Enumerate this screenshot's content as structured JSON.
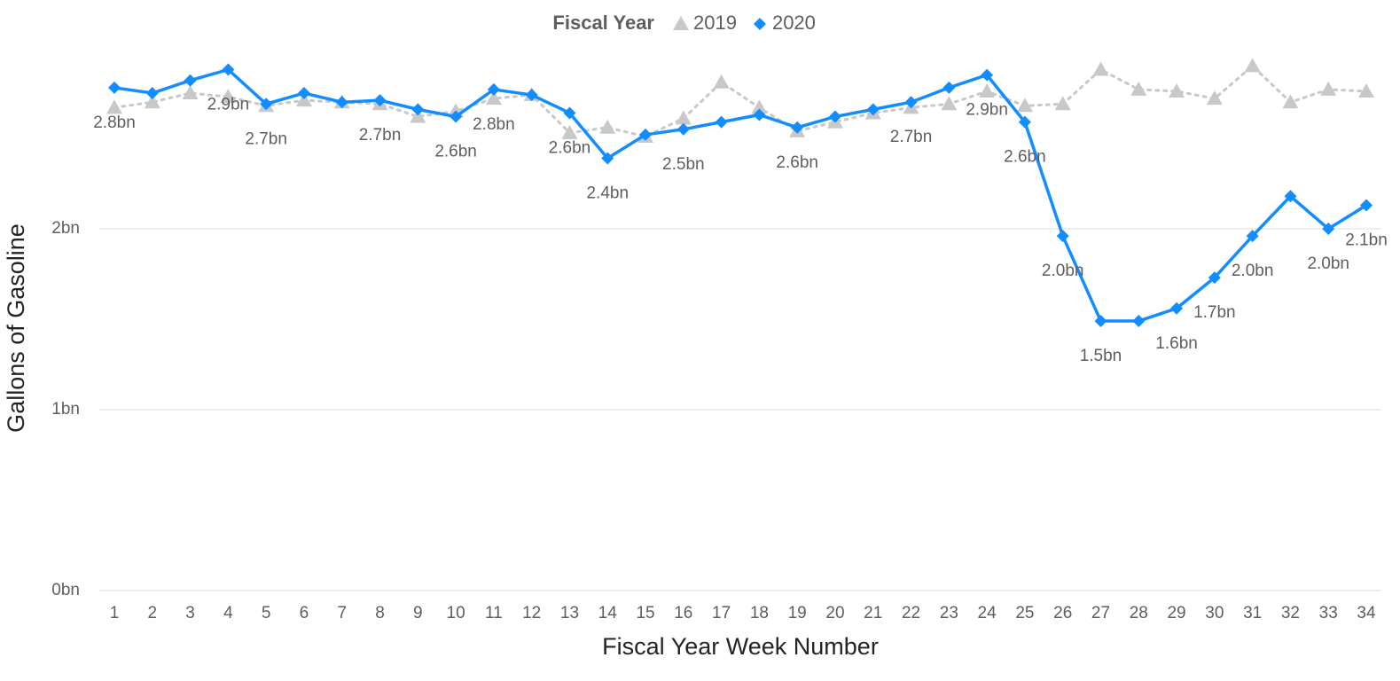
{
  "chart_data": {
    "type": "line",
    "legend_title": "Fiscal Year",
    "legend": "top",
    "x_label": "Fiscal Year Week Number",
    "y_label": "Gallons of Gasoline",
    "categories": [
      1,
      2,
      3,
      4,
      5,
      6,
      7,
      8,
      9,
      10,
      11,
      12,
      13,
      14,
      15,
      16,
      17,
      18,
      19,
      20,
      21,
      22,
      23,
      24,
      25,
      26,
      27,
      28,
      29,
      30,
      31,
      32,
      33,
      34
    ],
    "ylim": [
      0,
      3
    ],
    "yticks": [
      {
        "value": 0,
        "label": "0bn"
      },
      {
        "value": 1,
        "label": "1bn"
      },
      {
        "value": 2,
        "label": "2bn"
      }
    ],
    "grid": true,
    "series": [
      {
        "name": "2019",
        "color": "#c8c8c8",
        "marker": "triangle",
        "dashed": true,
        "values": [
          2.67,
          2.7,
          2.75,
          2.73,
          2.68,
          2.71,
          2.7,
          2.69,
          2.62,
          2.65,
          2.72,
          2.74,
          2.53,
          2.56,
          2.51,
          2.61,
          2.81,
          2.67,
          2.54,
          2.59,
          2.64,
          2.67,
          2.69,
          2.76,
          2.68,
          2.69,
          2.88,
          2.77,
          2.76,
          2.72,
          2.9,
          2.7,
          2.77,
          2.76
        ]
      },
      {
        "name": "2020",
        "color": "#118dff",
        "marker": "diamond",
        "dashed": false,
        "values": [
          2.78,
          2.75,
          2.82,
          2.88,
          2.69,
          2.75,
          2.7,
          2.71,
          2.66,
          2.62,
          2.77,
          2.74,
          2.64,
          2.39,
          2.52,
          2.55,
          2.59,
          2.63,
          2.56,
          2.62,
          2.66,
          2.7,
          2.78,
          2.85,
          2.59,
          1.96,
          1.49,
          1.49,
          1.56,
          1.73,
          1.96,
          2.18,
          2.0,
          2.13
        ],
        "value_labels": [
          "2.8bn",
          null,
          null,
          "2.9bn",
          "2.7bn",
          null,
          null,
          "2.7bn",
          null,
          "2.6bn",
          "2.8bn",
          null,
          "2.6bn",
          "2.4bn",
          null,
          "2.5bn",
          null,
          null,
          "2.6bn",
          null,
          null,
          "2.7bn",
          null,
          "2.9bn",
          "2.6bn",
          "2.0bn",
          "1.5bn",
          null,
          "1.6bn",
          "1.7bn",
          "2.0bn",
          null,
          "2.0bn",
          "2.1bn"
        ]
      }
    ]
  }
}
